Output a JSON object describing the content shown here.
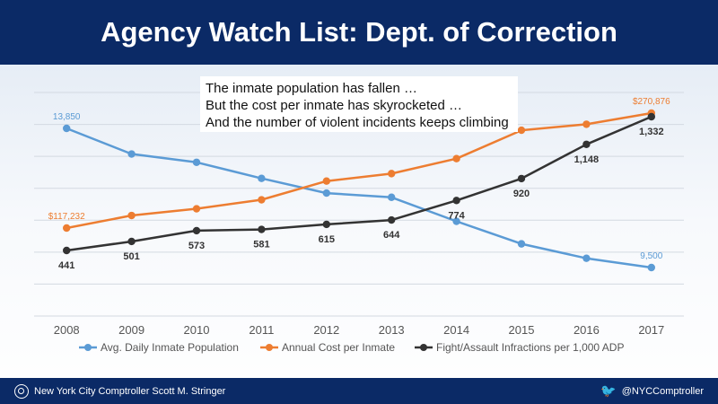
{
  "header": {
    "title": "Agency Watch List:  Dept. of Correction"
  },
  "callout": {
    "lines": [
      "The inmate population has fallen …",
      "But the cost per inmate has skyrocketed …",
      "And the number of violent incidents keeps climbing"
    ]
  },
  "footer": {
    "left_text": "New York City Comptroller Scott M. Stringer",
    "right_text": "@NYCComptroller",
    "left_icon": "seal-icon",
    "right_icon": "twitter-bird-icon"
  },
  "chart_data": {
    "type": "line",
    "x": [
      "2008",
      "2009",
      "2010",
      "2011",
      "2012",
      "2013",
      "2014",
      "2015",
      "2016",
      "2017"
    ],
    "grid": true,
    "legend_position": "bottom",
    "series": [
      {
        "name": "Avg. Daily Inmate Population",
        "color": "#5b9bd5",
        "values": [
          13850,
          13049,
          12790,
          12287,
          11827,
          11696,
          10944,
          10240,
          9790,
          9500
        ],
        "labels": [
          "13,850",
          "",
          "",
          "",
          "",
          "",
          "",
          "",
          "",
          "9,500"
        ]
      },
      {
        "name": "Annual Cost per Inmate",
        "color": "#ed7d31",
        "values": [
          117232,
          134000,
          143000,
          155000,
          180000,
          190000,
          210000,
          248000,
          256000,
          270876
        ],
        "labels": [
          "$117,232",
          "",
          "",
          "",
          "",
          "",
          "",
          "",
          "",
          "$270,876"
        ]
      },
      {
        "name": "Fight/Assault Infractions per 1,000 ADP",
        "color": "#333333",
        "values": [
          441,
          501,
          573,
          581,
          615,
          644,
          774,
          920,
          1148,
          1332
        ],
        "labels": [
          "441",
          "501",
          "573",
          "581",
          "615",
          "644",
          "774",
          "920",
          "1,148",
          "1,332"
        ]
      }
    ]
  }
}
